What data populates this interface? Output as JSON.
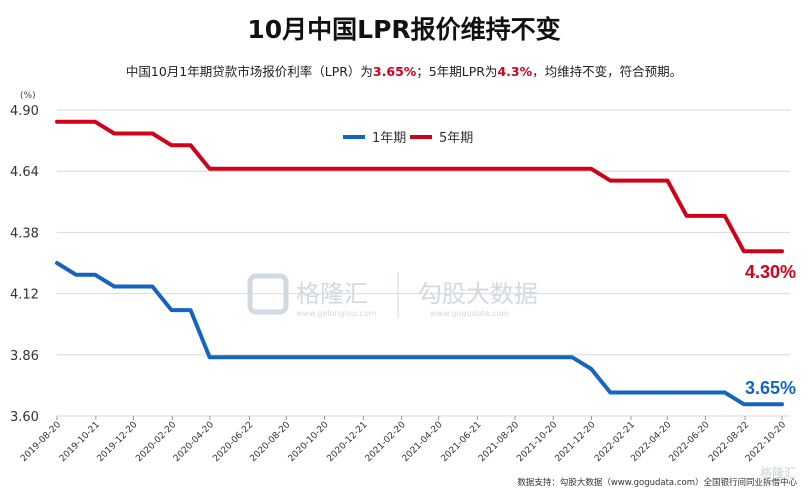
{
  "title_text": "10月中国LPR报价维持不变",
  "subtitle": {
    "pre": "中国10月1年期贷款市场报价利率（LPR）为",
    "v1": "3.65%",
    "mid": "；5年期LPR为",
    "v2": "4.3%",
    "post": "，均维持不变，符合预期。"
  },
  "colors": {
    "one_year": "#1565c0",
    "five_year": "#d0021b",
    "highlight": "#d0021b",
    "grid": "#d9d9d9"
  },
  "source": "数据支持：勾股大数据（www.gogudata.com）全国银行间同业拆借中心",
  "watermark": {
    "brand": "格隆汇",
    "site": "www.gelonghui.com",
    "brand2": "勾股大数据",
    "site2": "www.gogudata.com",
    "corner": "格隆汇"
  },
  "chart_data": {
    "type": "line",
    "unit_label": "(%)",
    "y_ticks": [
      "4.90",
      "4.64",
      "4.38",
      "4.12",
      "3.86",
      "3.60"
    ],
    "ylim": [
      3.6,
      4.9
    ],
    "grid": true,
    "legend_position": "top-center",
    "x_tick_labels": [
      "2019-08-20",
      "2019-10-21",
      "2019-12-20",
      "2020-02-20",
      "2020-04-20",
      "2020-06-22",
      "2020-08-20",
      "2020-10-20",
      "2020-12-21",
      "2021-02-20",
      "2021-04-20",
      "2021-06-21",
      "2021-08-20",
      "2021-10-20",
      "2021-12-20",
      "2022-02-21",
      "2022-04-20",
      "2022-06-20",
      "2022-08-22",
      "2022-10-20"
    ],
    "x": [
      "2019-08-20",
      "2019-09-20",
      "2019-10-21",
      "2019-11-20",
      "2019-12-20",
      "2020-01-20",
      "2020-02-20",
      "2020-03-20",
      "2020-04-20",
      "2020-05-20",
      "2020-06-22",
      "2020-07-20",
      "2020-08-20",
      "2020-09-21",
      "2020-10-20",
      "2020-11-20",
      "2020-12-21",
      "2021-01-20",
      "2021-02-20",
      "2021-03-22",
      "2021-04-20",
      "2021-05-20",
      "2021-06-21",
      "2021-07-20",
      "2021-08-20",
      "2021-09-22",
      "2021-10-20",
      "2021-11-22",
      "2021-12-20",
      "2022-01-20",
      "2022-02-21",
      "2022-03-21",
      "2022-04-20",
      "2022-05-20",
      "2022-06-20",
      "2022-07-20",
      "2022-08-22",
      "2022-09-20",
      "2022-10-20"
    ],
    "series": [
      {
        "name": "1年期",
        "end_label": "3.65%",
        "values": [
          4.25,
          4.2,
          4.2,
          4.15,
          4.15,
          4.15,
          4.05,
          4.05,
          3.85,
          3.85,
          3.85,
          3.85,
          3.85,
          3.85,
          3.85,
          3.85,
          3.85,
          3.85,
          3.85,
          3.85,
          3.85,
          3.85,
          3.85,
          3.85,
          3.85,
          3.85,
          3.85,
          3.85,
          3.8,
          3.7,
          3.7,
          3.7,
          3.7,
          3.7,
          3.7,
          3.7,
          3.65,
          3.65,
          3.65
        ]
      },
      {
        "name": "5年期",
        "end_label": "4.30%",
        "values": [
          4.85,
          4.85,
          4.85,
          4.8,
          4.8,
          4.8,
          4.75,
          4.75,
          4.65,
          4.65,
          4.65,
          4.65,
          4.65,
          4.65,
          4.65,
          4.65,
          4.65,
          4.65,
          4.65,
          4.65,
          4.65,
          4.65,
          4.65,
          4.65,
          4.65,
          4.65,
          4.65,
          4.65,
          4.65,
          4.6,
          4.6,
          4.6,
          4.6,
          4.45,
          4.45,
          4.45,
          4.3,
          4.3,
          4.3
        ]
      }
    ]
  }
}
